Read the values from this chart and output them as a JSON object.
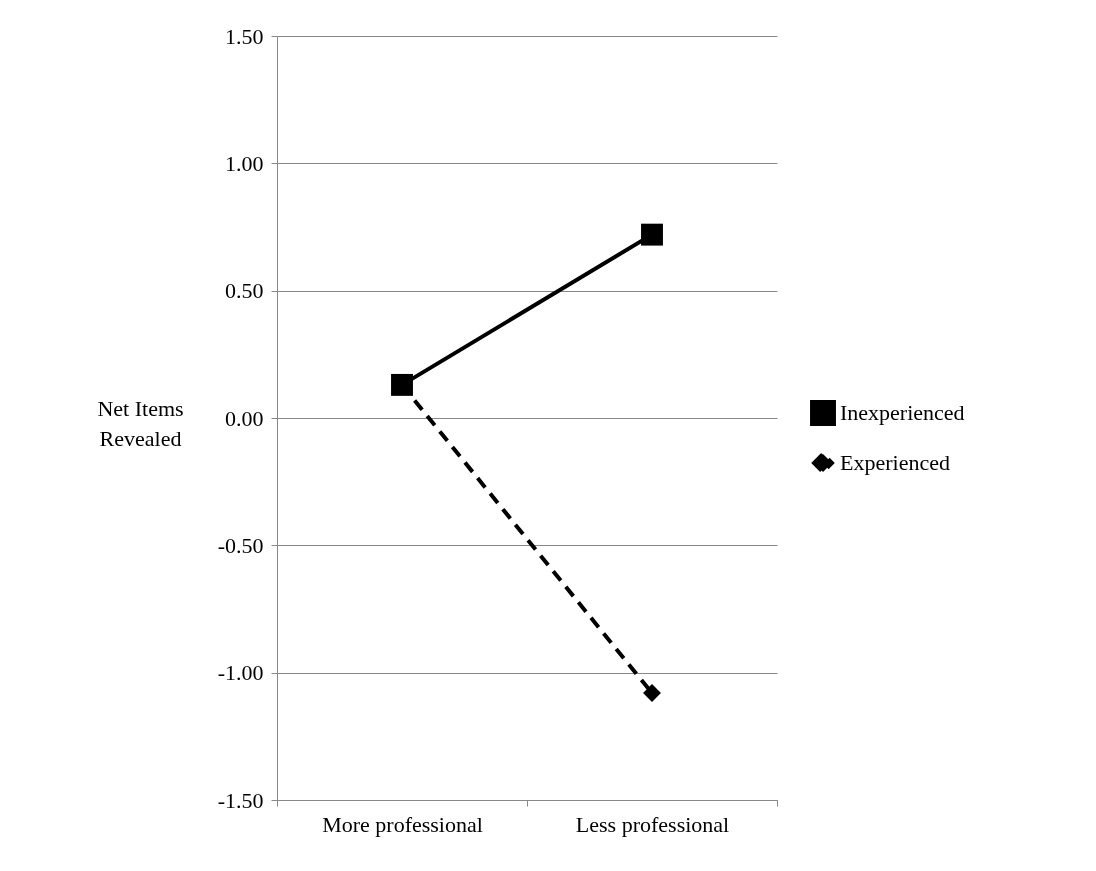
{
  "chart_data": {
    "type": "line",
    "ylabel": "Net Items Revealed",
    "categories": [
      "More professional",
      "Less professional"
    ],
    "series": [
      {
        "name": "Inexperienced",
        "color": "#000000",
        "values": [
          0.13,
          0.72
        ],
        "marker": "square",
        "line_style": "solid"
      },
      {
        "name": "Experienced",
        "color": "#000000",
        "values": [
          0.13,
          -1.08
        ],
        "marker": "diamond",
        "line_style": "dashed"
      }
    ],
    "ylim": [
      -1.5,
      1.5
    ],
    "yticks": [
      {
        "value": -1.5,
        "label": "-1.50"
      },
      {
        "value": -1,
        "label": "-1.00"
      },
      {
        "value": -0.5,
        "label": "-0.50"
      },
      {
        "value": 0,
        "label": "0.00"
      },
      {
        "value": 0.5,
        "label": "0.50"
      },
      {
        "value": 1,
        "label": "1.00"
      },
      {
        "value": 1.5,
        "label": "1.50"
      }
    ],
    "grid": "y",
    "legend": "right"
  }
}
